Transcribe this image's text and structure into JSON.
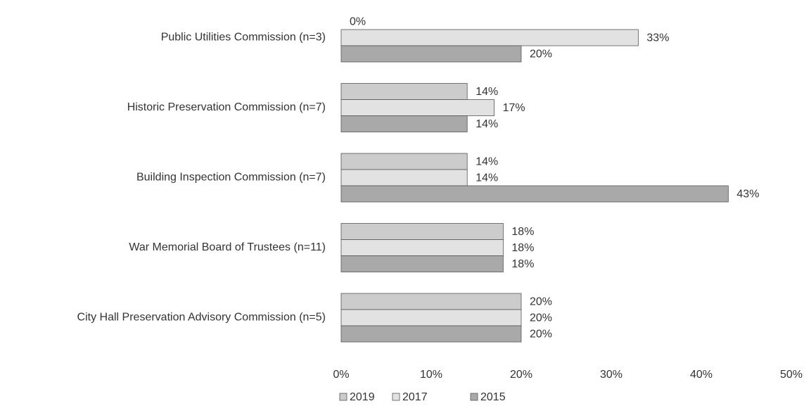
{
  "chart_data": {
    "type": "bar",
    "orientation": "horizontal",
    "categories": [
      "Public Utilities Commission (n=3)",
      "Historic Preservation Commission (n=7)",
      "Building Inspection Commission (n=7)",
      "War Memorial Board of Trustees (n=11)",
      "City Hall Preservation Advisory Commission (n=5)"
    ],
    "series": [
      {
        "name": "2019",
        "color": "#cccccc",
        "values": [
          0,
          14,
          14,
          18,
          20
        ],
        "value_labels": [
          "0%",
          "14%",
          "14%",
          "18%",
          "20%"
        ]
      },
      {
        "name": "2017",
        "color": "#e2e2e2",
        "values": [
          33,
          17,
          14,
          18,
          20
        ],
        "value_labels": [
          "33%",
          "17%",
          "14%",
          "18%",
          "20%"
        ]
      },
      {
        "name": "2015",
        "color": "#a9a9a9",
        "values": [
          20,
          14,
          43,
          18,
          20
        ],
        "value_labels": [
          "20%",
          "14%",
          "43%",
          "18%",
          "20%"
        ]
      }
    ],
    "xlim": [
      0,
      50
    ],
    "xticks": [
      {
        "value": 0,
        "label": "0%"
      },
      {
        "value": 10,
        "label": "10%"
      },
      {
        "value": 20,
        "label": "20%"
      },
      {
        "value": 30,
        "label": "30%"
      },
      {
        "value": 40,
        "label": "40%"
      },
      {
        "value": 50,
        "label": "50%"
      }
    ],
    "legend": "bottom"
  }
}
